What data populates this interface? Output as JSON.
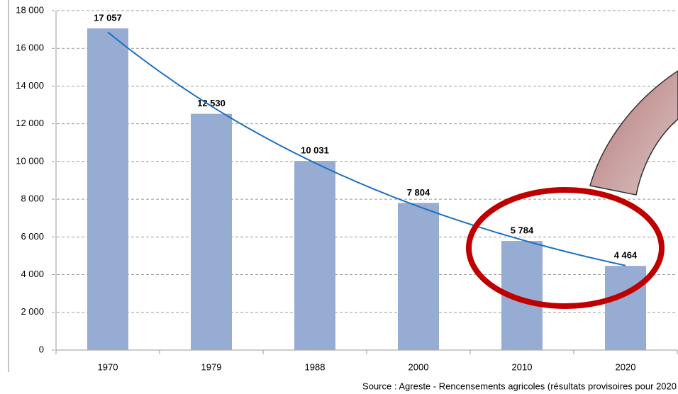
{
  "chart_data": {
    "type": "bar",
    "categories": [
      "1970",
      "1979",
      "1988",
      "2000",
      "2010",
      "2020"
    ],
    "values": [
      17057,
      12530,
      10031,
      7804,
      5784,
      4464
    ],
    "value_labels": [
      "17 057",
      "12 530",
      "10 031",
      "7 804",
      "5 784",
      "4 464"
    ],
    "color": "#97acd3",
    "ylim": [
      0,
      18000
    ],
    "yticks": [
      0,
      {
        "value": 2000,
        "label": "2 000"
      },
      {
        "value": 4000,
        "label": "4 000"
      },
      {
        "value": 6000,
        "label": "6 000"
      },
      {
        "value": 8000,
        "label": "8 000"
      },
      {
        "value": 10000,
        "label": "10 000"
      },
      {
        "value": 12000,
        "label": "12 000"
      },
      {
        "value": 14000,
        "label": "14 000"
      },
      {
        "value": 16000,
        "label": "16 000"
      },
      {
        "value": 18000,
        "label": "18 000"
      }
    ],
    "grid": true,
    "trendline": {
      "type": "exponential",
      "color": "#1f6fc1"
    },
    "source": "Source : Agreste - Rencensements agricoles (résultats provisoires pour 2020"
  }
}
